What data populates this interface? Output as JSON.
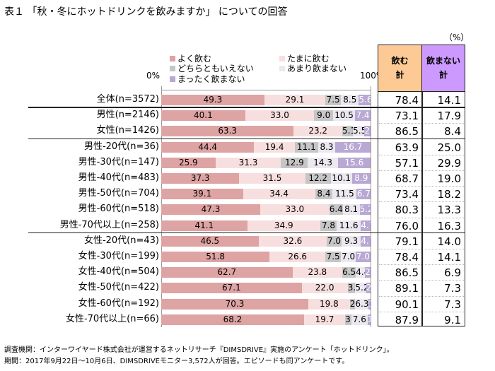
{
  "title": "表１ 「秋・冬にホットドリンクを飲みますか」 についての回答",
  "unit": "（%）",
  "chart_data": {
    "type": "bar",
    "stacked": true,
    "orientation": "horizontal",
    "xlim": [
      0,
      100
    ],
    "x_tick_labels": [
      "0%",
      "100%"
    ],
    "legend_placement": "top",
    "series": [
      {
        "name": "よく飲む",
        "color": "#dea3a3"
      },
      {
        "name": "たまに飲む",
        "color": "#f8dfdf"
      },
      {
        "name": "どちらともいえない",
        "color": "#c6c6c6"
      },
      {
        "name": "あまり飲まない",
        "color": "#ece8f0"
      },
      {
        "name": "まったく飲まない",
        "color": "#b9a8d4"
      }
    ],
    "categories": [
      "全体(n=3572)",
      "男性(n=2146)",
      "女性(n=1426)",
      "男性-20代(n=36)",
      "男性-30代(n=147)",
      "男性-40代(n=483)",
      "男性-50代(n=704)",
      "男性-60代(n=518)",
      "男性-70代以上(n=258)",
      "女性-20代(n=43)",
      "女性-30代(n=199)",
      "女性-40代(n=504)",
      "女性-50代(n=422)",
      "女性-60代(n=192)",
      "女性-70代以上(n=66)"
    ],
    "values": [
      [
        49.3,
        29.1,
        7.5,
        8.5,
        5.6
      ],
      [
        40.1,
        33.0,
        9.0,
        10.5,
        7.4
      ],
      [
        63.3,
        23.2,
        5.1,
        5.5,
        2.9
      ],
      [
        44.4,
        19.4,
        11.1,
        8.3,
        16.7
      ],
      [
        25.9,
        31.3,
        12.9,
        14.3,
        15.6
      ],
      [
        37.3,
        31.5,
        12.2,
        10.1,
        8.9
      ],
      [
        39.1,
        34.4,
        8.4,
        11.5,
        6.7
      ],
      [
        47.3,
        33.0,
        6.4,
        8.1,
        5.2
      ],
      [
        41.1,
        34.9,
        7.8,
        11.6,
        4.7
      ],
      [
        46.5,
        32.6,
        7.0,
        9.3,
        4.7
      ],
      [
        51.8,
        26.6,
        7.5,
        7.0,
        7.0
      ],
      [
        62.7,
        23.8,
        6.5,
        4.4,
        2.6
      ],
      [
        67.1,
        22.0,
        3.6,
        5.2,
        2.1
      ],
      [
        70.3,
        19.8,
        2.6,
        6.3,
        1.0
      ],
      [
        68.2,
        19.7,
        3.0,
        7.6,
        1.5
      ]
    ],
    "table": {
      "headers": [
        {
          "label": "飲む\n計",
          "color": "#fdca95"
        },
        {
          "label": "飲まない\n計",
          "color": "#cc99ff"
        }
      ],
      "drink_total": [
        78.4,
        73.1,
        86.5,
        63.9,
        57.1,
        68.7,
        73.4,
        80.3,
        76.0,
        79.1,
        78.4,
        86.5,
        89.1,
        90.1,
        87.9
      ],
      "nodrink_total": [
        14.1,
        17.9,
        8.4,
        25.0,
        29.9,
        19.0,
        18.2,
        13.3,
        16.3,
        14.0,
        14.1,
        6.9,
        7.3,
        7.3,
        9.1
      ]
    }
  },
  "footnote": [
    "調査機関：インターワイヤード株式会社が運営するネットリサーチ『DIMSDRIVE』実施のアンケート「ホットドリンク」。",
    "期間：2017年9月22日～10月6日、DIMSDRIVEモニター3,572人が回答。エピソードも同アンケートです。"
  ]
}
